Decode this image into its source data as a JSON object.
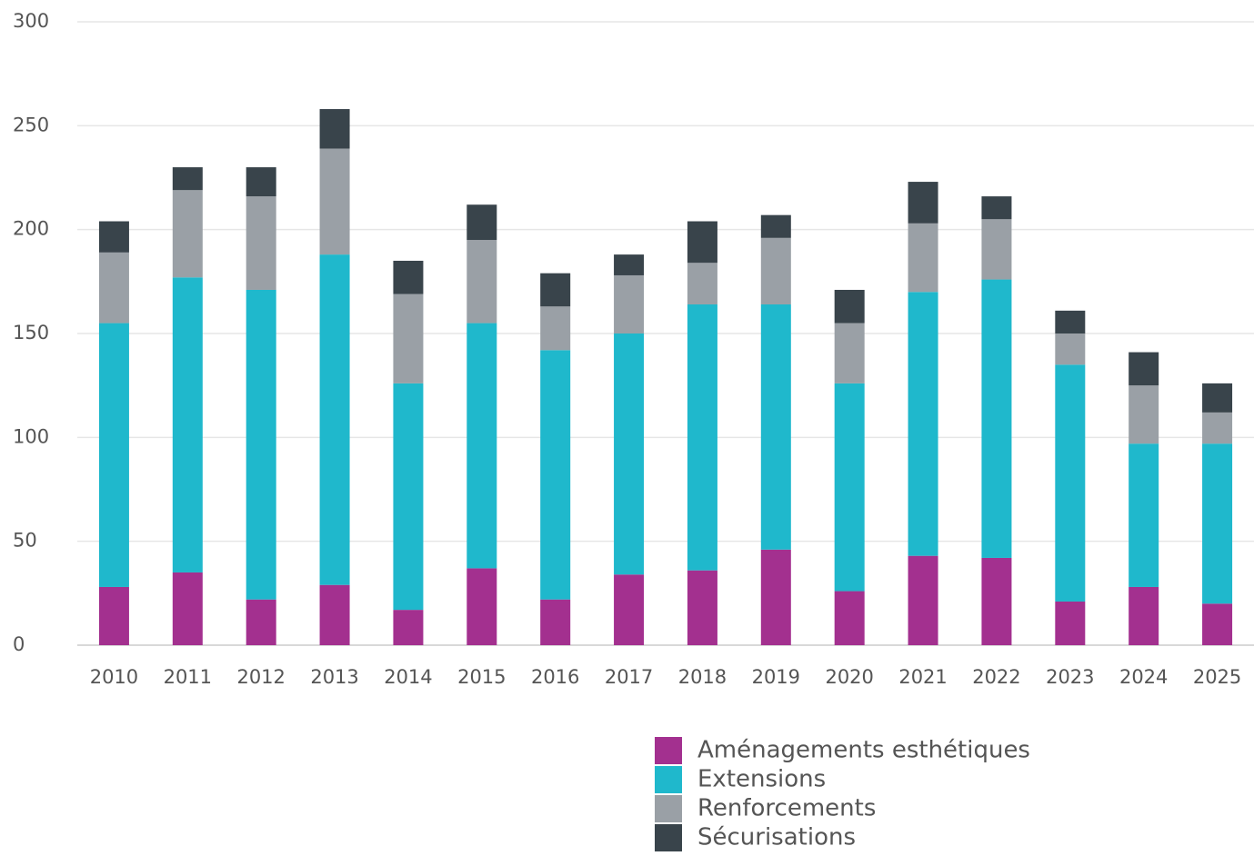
{
  "chart_data": {
    "type": "stacked_bar",
    "categories": [
      "2010",
      "2011",
      "2012",
      "2013",
      "2014",
      "2015",
      "2016",
      "2017",
      "2018",
      "2019",
      "2020",
      "2021",
      "2022",
      "2023",
      "2024",
      "2025"
    ],
    "series": [
      {
        "name": "Aménagements esthétiques",
        "color": "#a3308f",
        "values": [
          28,
          35,
          22,
          29,
          17,
          37,
          22,
          34,
          36,
          46,
          26,
          43,
          42,
          21,
          28,
          20
        ]
      },
      {
        "name": "Extensions",
        "color": "#1fb8cc",
        "values": [
          127,
          142,
          149,
          159,
          109,
          118,
          120,
          116,
          128,
          118,
          100,
          127,
          134,
          114,
          69,
          77
        ]
      },
      {
        "name": "Renforcements",
        "color": "#9aa0a6",
        "values": [
          34,
          42,
          45,
          51,
          43,
          40,
          21,
          28,
          20,
          32,
          29,
          33,
          29,
          15,
          28,
          15
        ]
      },
      {
        "name": "Sécurisations",
        "color": "#39444b",
        "values": [
          15,
          11,
          14,
          19,
          16,
          17,
          16,
          10,
          20,
          11,
          16,
          20,
          11,
          11,
          16,
          14
        ]
      }
    ],
    "ylim": [
      0,
      300
    ],
    "yticks": [
      0,
      50,
      100,
      150,
      200,
      250,
      300
    ],
    "grid": true
  }
}
